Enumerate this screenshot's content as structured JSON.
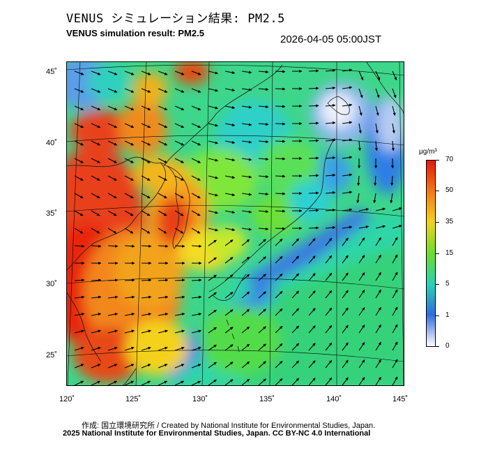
{
  "title_ja": "VENUS シミュレーション結果: PM2.5",
  "title_en": "VENUS simulation result: PM2.5",
  "timestamp": "2026-04-05 05:00JST",
  "map": {
    "lat_labels": [
      "45˚",
      "40˚",
      "35˚",
      "30˚",
      "25˚"
    ],
    "lon_labels": [
      "120˚",
      "125˚",
      "130˚",
      "135˚",
      "140˚",
      "145˚"
    ]
  },
  "colorbar": {
    "unit": "μg/m³",
    "ticks": [
      "70",
      "50",
      "35",
      "15",
      "5",
      "1",
      "0"
    ],
    "colors": [
      "#e11a0a",
      "#f47a1a",
      "#f3d21e",
      "#6cdc2e",
      "#29d0b6",
      "#2f6cdc",
      "#ffffff"
    ]
  },
  "credit_line1": "作成: 国立環境研究所 / Created by National Institute for Environmental Studies, Japan.",
  "credit_line2": "2025 National Institute for Environmental Studies, Japan. CC BY-NC 4.0 International"
}
